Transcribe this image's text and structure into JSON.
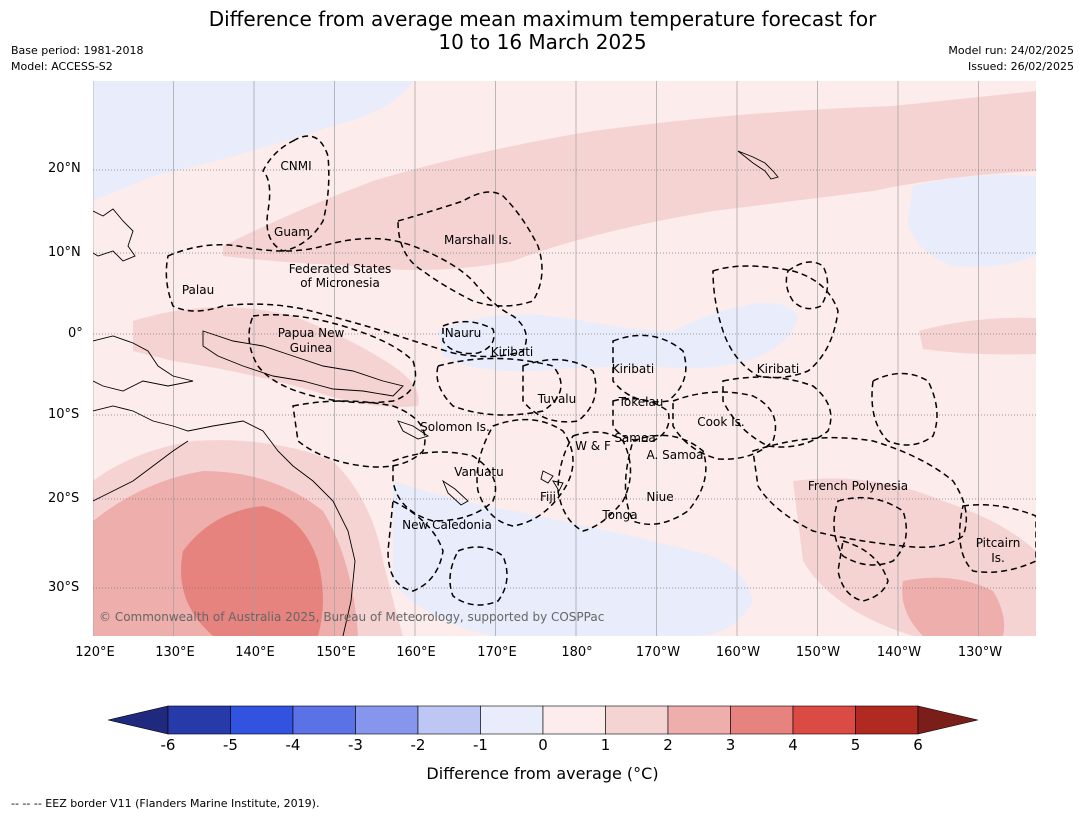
{
  "title_line1": "Difference from average mean maximum temperature forecast for",
  "title_line2": "10 to 16 March 2025",
  "base_period": "Base period: 1981-2018",
  "model": "Model: ACCESS-S2",
  "model_run": "Model run: 24/02/2025",
  "issued": "Issued: 26/02/2025",
  "lat_labels": [
    "20°N",
    "10°N",
    "0°",
    "10°S",
    "20°S",
    "30°S"
  ],
  "lon_labels": [
    "120°E",
    "130°E",
    "140°E",
    "150°E",
    "160°E",
    "170°E",
    "180°",
    "170°W",
    "160°W",
    "150°W",
    "140°W",
    "130°W"
  ],
  "places": {
    "cnmi": "CNMI",
    "guam": "Guam",
    "marshall": "Marshall Is.",
    "fsm1": "Federated States",
    "fsm2": "of Micronesia",
    "palau": "Palau",
    "png1": "Papua New",
    "png2": "Guinea",
    "nauru": "Nauru",
    "kiribati_w": "Kiribati",
    "kiribati_c": "Kiribati",
    "kiribati_e": "Kiribati",
    "tuvalu": "Tuvalu",
    "tokelau": "Tokelau",
    "cook": "Cook Is.",
    "samoa": "Samoa",
    "wf": "W & F",
    "asamoa": "A. Samoa",
    "solomon": "Solomon Is.",
    "vanuatu": "Vanuatu",
    "fiji": "Fiji",
    "niue": "Niue",
    "tonga": "Tonga",
    "frpoly": "French Polynesia",
    "newcal": "New Caledonia",
    "pitcairn1": "Pitcairn",
    "pitcairn2": "Is."
  },
  "copyright": "© Commonwealth of Australia 2025, Bureau of Meteorology, supported by COSPPac",
  "colorbar": {
    "ticks": [
      "-6",
      "-5",
      "-4",
      "-3",
      "-2",
      "-1",
      "0",
      "1",
      "2",
      "3",
      "4",
      "5",
      "6"
    ],
    "colors": [
      "#263aa9",
      "#3252e0",
      "#5b72e6",
      "#8596ec",
      "#bec7f4",
      "#e8ecfb",
      "#fceceb",
      "#f6d3d3",
      "#eeaeab",
      "#e7837e",
      "#db4a43",
      "#b02a22"
    ],
    "under_color": "#1f2a7e",
    "over_color": "#7b1d19",
    "label": "Difference from average (°C)"
  },
  "footer": "--  --  -- EEZ border V11 (Flanders Marine Institute, 2019)."
}
